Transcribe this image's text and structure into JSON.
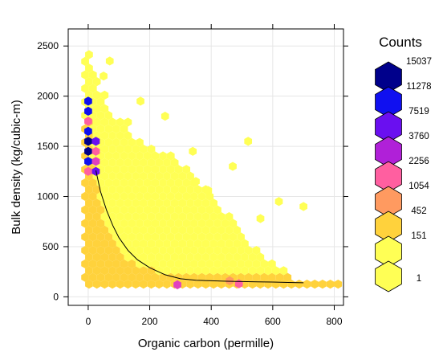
{
  "chart_data": {
    "type": "heatmap",
    "subtype": "hexbin",
    "xlabel": "Organic carbon (permille)",
    "ylabel": "Bulk density (kg/cubic-m)",
    "xlim": [
      -65,
      830
    ],
    "ylim": [
      -85,
      2670
    ],
    "xticks": [
      0,
      200,
      400,
      600,
      800
    ],
    "yticks": [
      0,
      500,
      1000,
      1500,
      2000,
      2500
    ],
    "grid": true,
    "legend": {
      "title": "Counts",
      "placement": "right",
      "levels": [
        {
          "label": "15037",
          "color": "#00008B"
        },
        {
          "label": "11278",
          "color": "#1010F0"
        },
        {
          "label": "7519",
          "color": "#6A0FF0"
        },
        {
          "label": "3760",
          "color": "#B020D8"
        },
        {
          "label": "2256",
          "color": "#FF5FA0"
        },
        {
          "label": "1054",
          "color": "#FF9A60"
        },
        {
          "label": "452",
          "color": "#FFD23C"
        },
        {
          "label": "151",
          "color": "#FFFF55"
        },
        {
          "label": "1",
          "color": "#FFFF55"
        }
      ]
    },
    "colors": {
      "light_yellow": "#FFFF55",
      "yellow": "#FFD23C",
      "orange": "#FF9A60",
      "pink": "#FF5FA0",
      "magenta": "#E040C0",
      "purple": "#B020D8",
      "violet": "#6A0FF0",
      "blue": "#1010F0",
      "navy": "#00008B"
    },
    "density_clusters": [
      {
        "x": 0,
        "y": 1650,
        "level": "blue"
      },
      {
        "x": 0,
        "y": 1550,
        "level": "navy"
      },
      {
        "x": 0,
        "y": 1450,
        "level": "navy"
      },
      {
        "x": 0,
        "y": 1350,
        "level": "blue"
      },
      {
        "x": 0,
        "y": 1850,
        "level": "blue"
      },
      {
        "x": 0,
        "y": 1950,
        "level": "blue"
      },
      {
        "x": 0,
        "y": 1250,
        "level": "pink"
      },
      {
        "x": 0,
        "y": 1750,
        "level": "pink"
      },
      {
        "x": 25,
        "y": 1550,
        "level": "violet"
      },
      {
        "x": 25,
        "y": 1450,
        "level": "pink"
      },
      {
        "x": 25,
        "y": 1350,
        "level": "magenta"
      },
      {
        "x": 25,
        "y": 1250,
        "level": "violet"
      },
      {
        "x": 290,
        "y": 120,
        "level": "magenta"
      },
      {
        "x": 490,
        "y": 130,
        "level": "pink"
      },
      {
        "x": 460,
        "y": 160,
        "level": "orange"
      }
    ],
    "fit_curve": {
      "x": [
        25,
        40,
        60,
        80,
        100,
        130,
        160,
        200,
        250,
        300,
        350,
        400,
        450,
        500,
        550,
        600,
        650,
        700
      ],
      "y": [
        1260,
        1050,
        860,
        710,
        590,
        460,
        370,
        290,
        220,
        180,
        165,
        160,
        155,
        152,
        150,
        147,
        143,
        140
      ]
    }
  }
}
